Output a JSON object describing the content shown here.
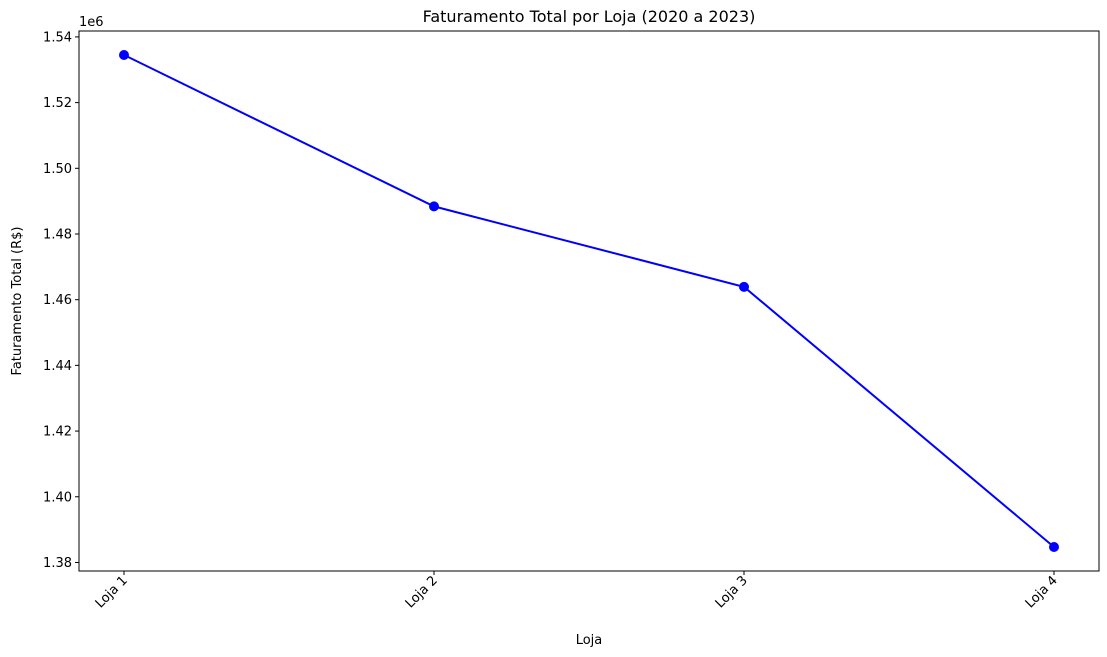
{
  "chart_data": {
    "type": "line",
    "title": "Faturamento Total por Loja (2020 a 2023)",
    "xlabel": "Loja",
    "ylabel": "Faturamento Total (R$)",
    "y_offset_label": "1e6",
    "categories": [
      "Loja 1",
      "Loja 2",
      "Loja 3",
      "Loja 4"
    ],
    "series": [
      {
        "values": [
          1534500,
          1488400,
          1463900,
          1384700
        ],
        "color": "#0000ff",
        "marker": "circle"
      }
    ],
    "ylim": [
      1.3774,
      1.5418
    ],
    "yticks": [
      1.38,
      1.4,
      1.42,
      1.44,
      1.46,
      1.48,
      1.5,
      1.52,
      1.54
    ],
    "ytick_labels": [
      "1.38",
      "1.40",
      "1.42",
      "1.44",
      "1.46",
      "1.48",
      "1.50",
      "1.52",
      "1.54"
    ],
    "y_scale": 1000000,
    "xtick_rotation": -45,
    "grid": false,
    "legend": "none"
  }
}
